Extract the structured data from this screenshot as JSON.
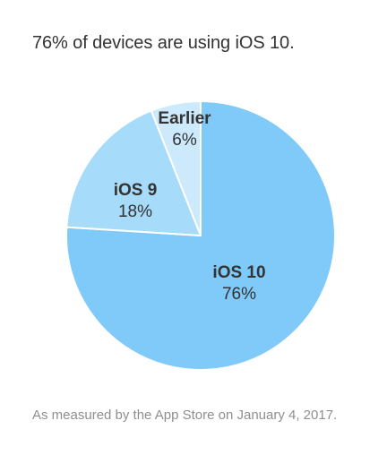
{
  "headline": "76% of devices are using iOS 10.",
  "footnote": "As measured by the App Store on January 4, 2017.",
  "chart_data": {
    "type": "pie",
    "title": "",
    "slices": [
      {
        "label": "iOS 10",
        "value": 76,
        "value_label": "76%",
        "color": "#7fcaf8"
      },
      {
        "label": "iOS 9",
        "value": 18,
        "value_label": "18%",
        "color": "#a6dbfa"
      },
      {
        "label": "Earlier",
        "value": 6,
        "value_label": "6%",
        "color": "#cdeafc"
      }
    ],
    "start_angle": "12 o'clock",
    "direction": "clockwise",
    "legend": "none (labels inside slices)"
  }
}
